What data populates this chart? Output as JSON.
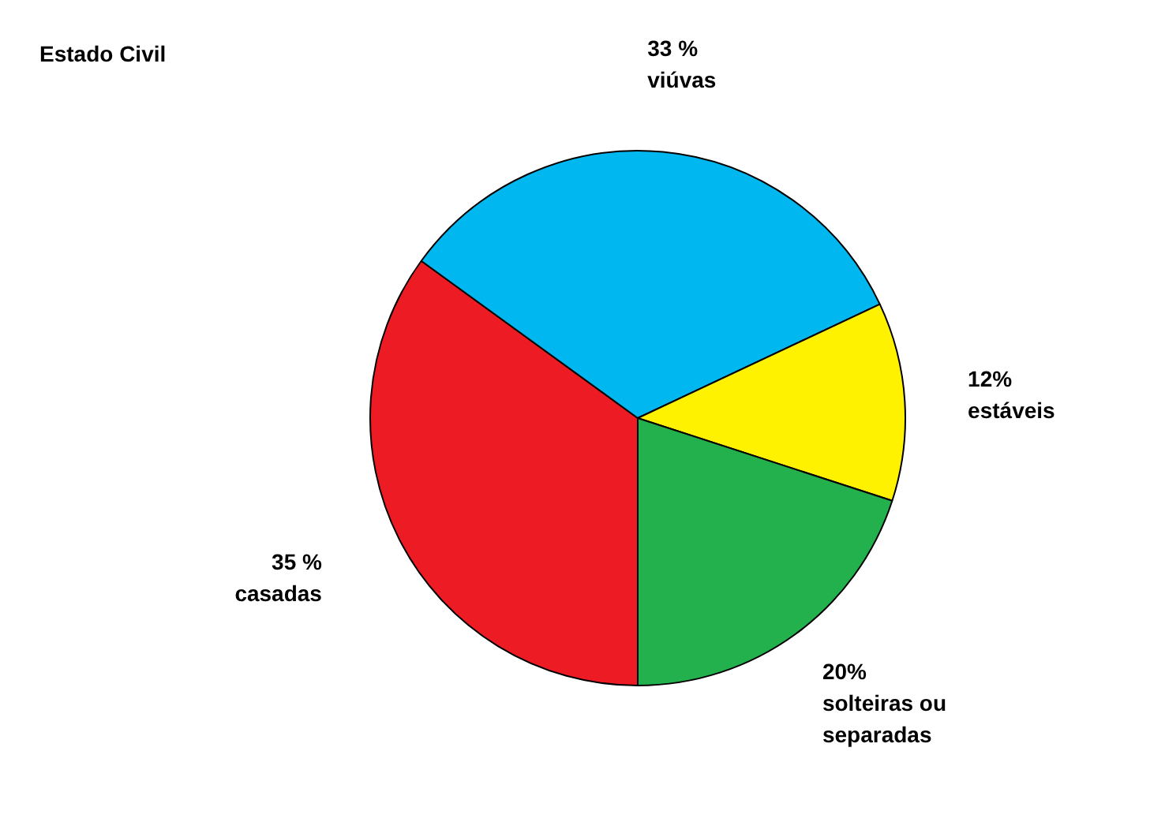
{
  "chart_data": {
    "type": "pie",
    "title": "Estado Civil",
    "categories": [
      "casadas",
      "viúvas",
      "estáveis",
      "solteiras ou separadas"
    ],
    "values": [
      35,
      33,
      12,
      20
    ],
    "value_labels": [
      "35 %",
      "33 %",
      "12%",
      "20%"
    ],
    "colors": [
      "#ed1c24",
      "#00b7ef",
      "#fff200",
      "#22b14c"
    ],
    "legend": false
  }
}
